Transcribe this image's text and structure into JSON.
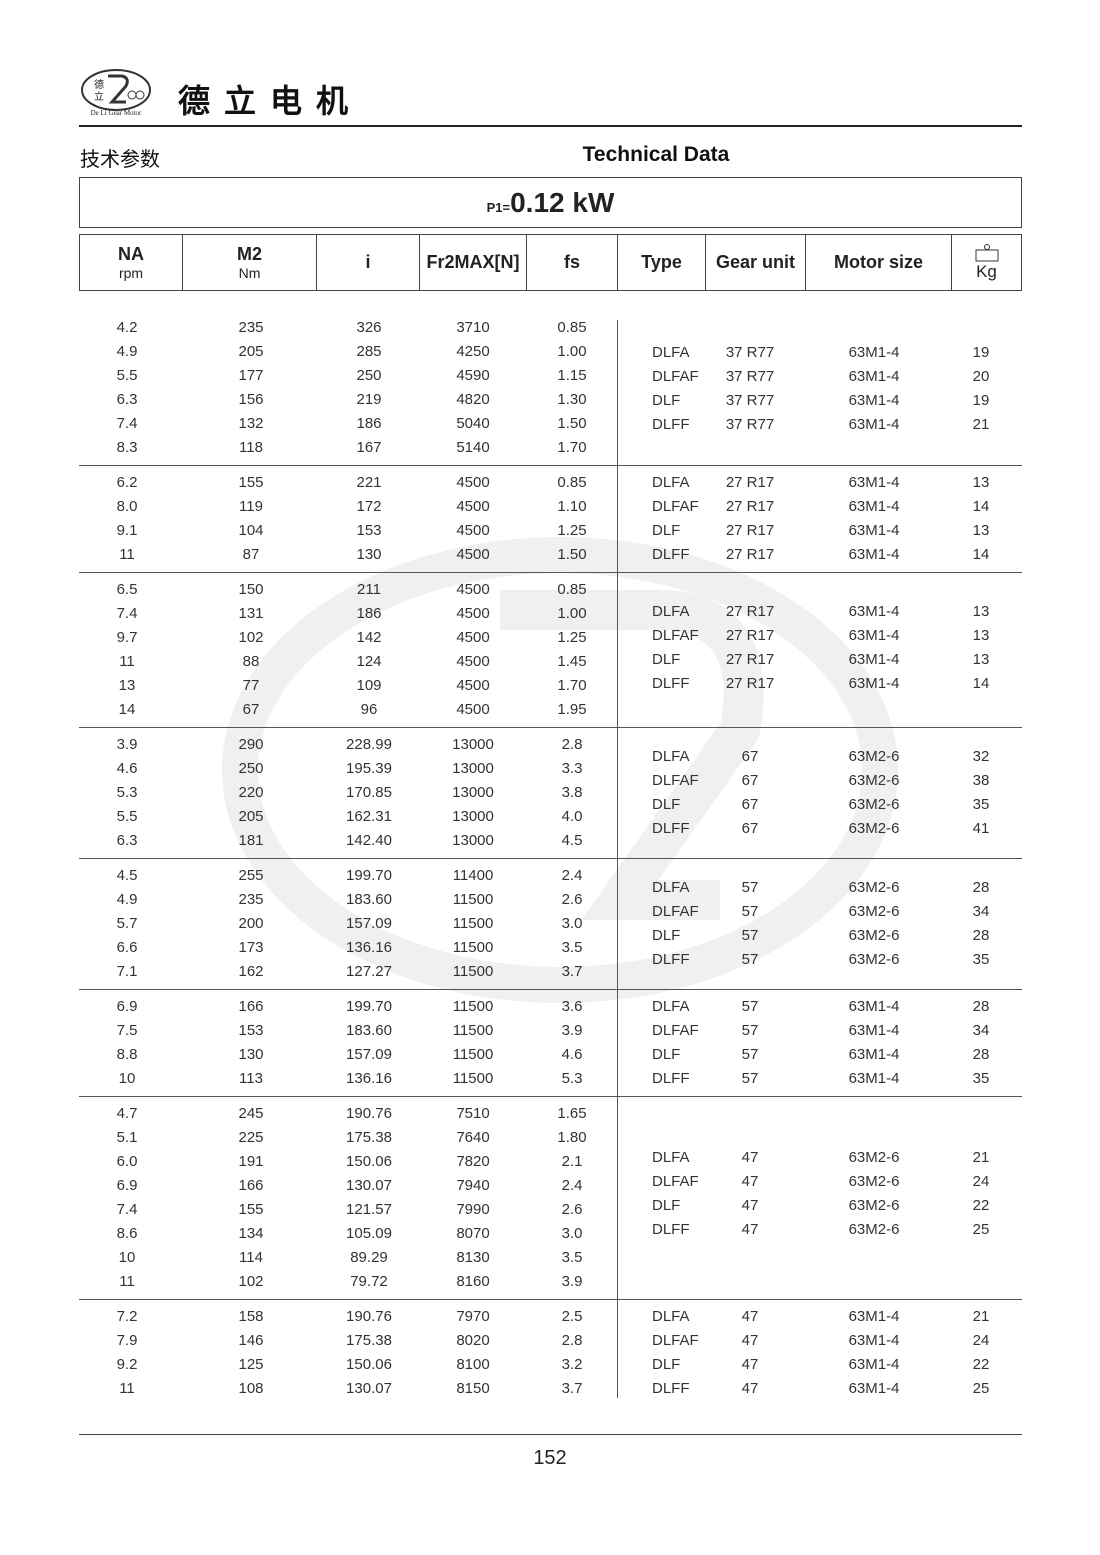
{
  "header": {
    "brand_cn": "德立电机",
    "logo_text": "De Li Gear Motor",
    "section_cn": "技术参数",
    "section_en": "Technical Data"
  },
  "power": {
    "prefix": "P1=",
    "value": "0.12 kW"
  },
  "columns": [
    {
      "label": "NA",
      "unit": "rpm"
    },
    {
      "label": "M2",
      "unit": "Nm"
    },
    {
      "label": "i"
    },
    {
      "label": "Fr2MAX[N]"
    },
    {
      "label": "fs"
    },
    {
      "label": "Type"
    },
    {
      "label": "Gear unit"
    },
    {
      "label": "Motor size"
    },
    {
      "label": "",
      "unit": "Kg",
      "icon": "weight-icon"
    }
  ],
  "groups": [
    {
      "rows": [
        [
          "4.2",
          "235",
          "326",
          "3710",
          "0.85"
        ],
        [
          "4.9",
          "205",
          "285",
          "4250",
          "1.00"
        ],
        [
          "5.5",
          "177",
          "250",
          "4590",
          "1.15"
        ],
        [
          "6.3",
          "156",
          "219",
          "4820",
          "1.30"
        ],
        [
          "7.4",
          "132",
          "186",
          "5040",
          "1.50"
        ],
        [
          "8.3",
          "118",
          "167",
          "5140",
          "1.70"
        ]
      ],
      "units": [
        [
          "DLFA",
          "37 R77",
          "63M1-4",
          "19"
        ],
        [
          "DLFAF",
          "37 R77",
          "63M1-4",
          "20"
        ],
        [
          "DLF",
          "37 R77",
          "63M1-4",
          "19"
        ],
        [
          "DLFF",
          "37 R77",
          "63M1-4",
          "21"
        ]
      ]
    },
    {
      "rows": [
        [
          "6.2",
          "155",
          "221",
          "4500",
          "0.85"
        ],
        [
          "8.0",
          "119",
          "172",
          "4500",
          "1.10"
        ],
        [
          "9.1",
          "104",
          "153",
          "4500",
          "1.25"
        ],
        [
          "11",
          "87",
          "130",
          "4500",
          "1.50"
        ]
      ],
      "units": [
        [
          "DLFA",
          "27 R17",
          "63M1-4",
          "13"
        ],
        [
          "DLFAF",
          "27 R17",
          "63M1-4",
          "14"
        ],
        [
          "DLF",
          "27 R17",
          "63M1-4",
          "13"
        ],
        [
          "DLFF",
          "27 R17",
          "63M1-4",
          "14"
        ]
      ]
    },
    {
      "rows": [
        [
          "6.5",
          "150",
          "211",
          "4500",
          "0.85"
        ],
        [
          "7.4",
          "131",
          "186",
          "4500",
          "1.00"
        ],
        [
          "9.7",
          "102",
          "142",
          "4500",
          "1.25"
        ],
        [
          "11",
          "88",
          "124",
          "4500",
          "1.45"
        ],
        [
          "13",
          "77",
          "109",
          "4500",
          "1.70"
        ],
        [
          "14",
          "67",
          "96",
          "4500",
          "1.95"
        ]
      ],
      "units": [
        [
          "DLFA",
          "27 R17",
          "63M1-4",
          "13"
        ],
        [
          "DLFAF",
          "27 R17",
          "63M1-4",
          "13"
        ],
        [
          "DLF",
          "27 R17",
          "63M1-4",
          "13"
        ],
        [
          "DLFF",
          "27 R17",
          "63M1-4",
          "14"
        ]
      ]
    },
    {
      "rows": [
        [
          "3.9",
          "290",
          "228.99",
          "13000",
          "2.8"
        ],
        [
          "4.6",
          "250",
          "195.39",
          "13000",
          "3.3"
        ],
        [
          "5.3",
          "220",
          "170.85",
          "13000",
          "3.8"
        ],
        [
          "5.5",
          "205",
          "162.31",
          "13000",
          "4.0"
        ],
        [
          "6.3",
          "181",
          "142.40",
          "13000",
          "4.5"
        ]
      ],
      "units": [
        [
          "DLFA",
          "67",
          "63M2-6",
          "32"
        ],
        [
          "DLFAF",
          "67",
          "63M2-6",
          "38"
        ],
        [
          "DLF",
          "67",
          "63M2-6",
          "35"
        ],
        [
          "DLFF",
          "67",
          "63M2-6",
          "41"
        ]
      ]
    },
    {
      "rows": [
        [
          "4.5",
          "255",
          "199.70",
          "11400",
          "2.4"
        ],
        [
          "4.9",
          "235",
          "183.60",
          "11500",
          "2.6"
        ],
        [
          "5.7",
          "200",
          "157.09",
          "11500",
          "3.0"
        ],
        [
          "6.6",
          "173",
          "136.16",
          "11500",
          "3.5"
        ],
        [
          "7.1",
          "162",
          "127.27",
          "11500",
          "3.7"
        ]
      ],
      "units": [
        [
          "DLFA",
          "57",
          "63M2-6",
          "28"
        ],
        [
          "DLFAF",
          "57",
          "63M2-6",
          "34"
        ],
        [
          "DLF",
          "57",
          "63M2-6",
          "28"
        ],
        [
          "DLFF",
          "57",
          "63M2-6",
          "35"
        ]
      ]
    },
    {
      "rows": [
        [
          "6.9",
          "166",
          "199.70",
          "11500",
          "3.6"
        ],
        [
          "7.5",
          "153",
          "183.60",
          "11500",
          "3.9"
        ],
        [
          "8.8",
          "130",
          "157.09",
          "11500",
          "4.6"
        ],
        [
          "10",
          "113",
          "136.16",
          "11500",
          "5.3"
        ]
      ],
      "units": [
        [
          "DLFA",
          "57",
          "63M1-4",
          "28"
        ],
        [
          "DLFAF",
          "57",
          "63M1-4",
          "34"
        ],
        [
          "DLF",
          "57",
          "63M1-4",
          "28"
        ],
        [
          "DLFF",
          "57",
          "63M1-4",
          "35"
        ]
      ]
    },
    {
      "rows": [
        [
          "4.7",
          "245",
          "190.76",
          "7510",
          "1.65"
        ],
        [
          "5.1",
          "225",
          "175.38",
          "7640",
          "1.80"
        ],
        [
          "6.0",
          "191",
          "150.06",
          "7820",
          "2.1"
        ],
        [
          "6.9",
          "166",
          "130.07",
          "7940",
          "2.4"
        ],
        [
          "7.4",
          "155",
          "121.57",
          "7990",
          "2.6"
        ],
        [
          "8.6",
          "134",
          "105.09",
          "8070",
          "3.0"
        ],
        [
          "10",
          "114",
          "89.29",
          "8130",
          "3.5"
        ],
        [
          "11",
          "102",
          "79.72",
          "8160",
          "3.9"
        ]
      ],
      "units": [
        [
          "DLFA",
          "47",
          "63M2-6",
          "21"
        ],
        [
          "DLFAF",
          "47",
          "63M2-6",
          "24"
        ],
        [
          "DLF",
          "47",
          "63M2-6",
          "22"
        ],
        [
          "DLFF",
          "47",
          "63M2-6",
          "25"
        ]
      ]
    },
    {
      "rows": [
        [
          "7.2",
          "158",
          "190.76",
          "7970",
          "2.5"
        ],
        [
          "7.9",
          "146",
          "175.38",
          "8020",
          "2.8"
        ],
        [
          "9.2",
          "125",
          "150.06",
          "8100",
          "3.2"
        ],
        [
          "11",
          "108",
          "130.07",
          "8150",
          "3.7"
        ]
      ],
      "units": [
        [
          "DLFA",
          "47",
          "63M1-4",
          "21"
        ],
        [
          "DLFAF",
          "47",
          "63M1-4",
          "24"
        ],
        [
          "DLF",
          "47",
          "63M1-4",
          "22"
        ],
        [
          "DLFF",
          "47",
          "63M1-4",
          "25"
        ]
      ]
    }
  ],
  "watermark": "De Li Gear Motor",
  "footer": {
    "page_number": "152"
  }
}
